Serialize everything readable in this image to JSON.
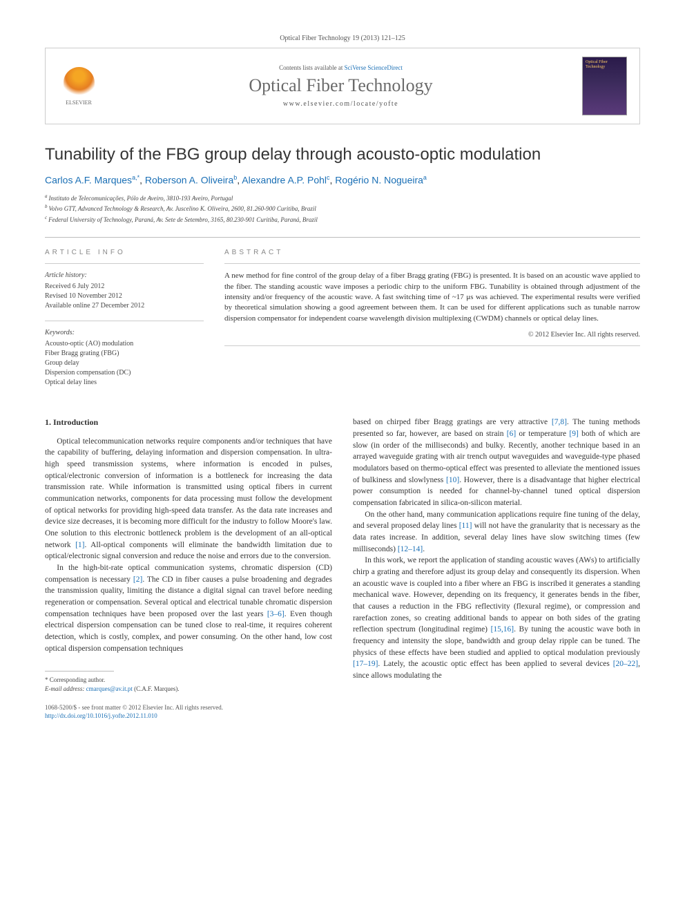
{
  "journal_ref": "Optical Fiber Technology 19 (2013) 121–125",
  "header": {
    "contents_prefix": "Contents lists available at ",
    "contents_link": "SciVerse ScienceDirect",
    "journal_title": "Optical Fiber Technology",
    "journal_url": "www.elsevier.com/locate/yofte",
    "publisher_label": "ELSEVIER",
    "cover_label": "Optical Fiber Technology"
  },
  "title": "Tunability of the FBG group delay through acousto-optic modulation",
  "authors": [
    {
      "name": "Carlos A.F. Marques",
      "marks": "a,*"
    },
    {
      "name": "Roberson A. Oliveira",
      "marks": "b"
    },
    {
      "name": "Alexandre A.P. Pohl",
      "marks": "c"
    },
    {
      "name": "Rogério N. Nogueira",
      "marks": "a"
    }
  ],
  "affiliations": [
    {
      "mark": "a",
      "text": "Instituto de Telecomunicações, Pólo de Aveiro, 3810-193 Aveiro, Portugal"
    },
    {
      "mark": "b",
      "text": "Volvo GTT, Advanced Technology & Research, Av. Juscelino K. Oliveira, 2600, 81.260-900 Curitiba, Brazil"
    },
    {
      "mark": "c",
      "text": "Federal University of Technology, Paraná, Av. Sete de Setembro, 3165, 80.230-901 Curitiba, Paraná, Brazil"
    }
  ],
  "article_info": {
    "label": "ARTICLE INFO",
    "history_label": "Article history:",
    "received": "Received 6 July 2012",
    "revised": "Revised 10 November 2012",
    "online": "Available online 27 December 2012",
    "keywords_label": "Keywords:",
    "keywords": [
      "Acousto-optic (AO) modulation",
      "Fiber Bragg grating (FBG)",
      "Group delay",
      "Dispersion compensation (DC)",
      "Optical delay lines"
    ]
  },
  "abstract": {
    "label": "ABSTRACT",
    "text": "A new method for fine control of the group delay of a fiber Bragg grating (FBG) is presented. It is based on an acoustic wave applied to the fiber. The standing acoustic wave imposes a periodic chirp to the uniform FBG. Tunability is obtained through adjustment of the intensity and/or frequency of the acoustic wave. A fast switching time of ~17 μs was achieved. The experimental results were verified by theoretical simulation showing a good agreement between them. It can be used for different applications such as tunable narrow dispersion compensator for independent coarse wavelength division multiplexing (CWDM) channels or optical delay lines.",
    "copyright": "© 2012 Elsevier Inc. All rights reserved."
  },
  "body": {
    "section_heading": "1. Introduction",
    "p1": "Optical telecommunication networks require components and/or techniques that have the capability of buffering, delaying information and dispersion compensation. In ultra-high speed transmission systems, where information is encoded in pulses, optical/electronic conversion of information is a bottleneck for increasing the data transmission rate. While information is transmitted using optical fibers in current communication networks, components for data processing must follow the development of optical networks for providing high-speed data transfer. As the data rate increases and device size decreases, it is becoming more difficult for the industry to follow Moore's law. One solution to this electronic bottleneck problem is the development of an all-optical network [1]. All-optical components will eliminate the bandwidth limitation due to optical/electronic signal conversion and reduce the noise and errors due to the conversion.",
    "p2": "In the high-bit-rate optical communication systems, chromatic dispersion (CD) compensation is necessary [2]. The CD in fiber causes a pulse broadening and degrades the transmission quality, limiting the distance a digital signal can travel before needing regeneration or compensation. Several optical and electrical tunable chromatic dispersion compensation techniques have been proposed over the last years [3–6]. Even though electrical dispersion compensation can be tuned close to real-time, it requires coherent detection, which is costly, complex, and power consuming. On the other hand, low cost optical dispersion compensation techniques",
    "p3": "based on chirped fiber Bragg gratings are very attractive [7,8]. The tuning methods presented so far, however, are based on strain [6] or temperature [9] both of which are slow (in order of the milliseconds) and bulky. Recently, another technique based in an arrayed waveguide grating with air trench output waveguides and waveguide-type phased modulators based on thermo-optical effect was presented to alleviate the mentioned issues of bulkiness and slowlyness [10]. However, there is a disadvantage that higher electrical power consumption is needed for channel-by-channel tuned optical dispersion compensation fabricated in silica-on-silicon material.",
    "p4": "On the other hand, many communication applications require fine tuning of the delay, and several proposed delay lines [11] will not have the granularity that is necessary as the data rates increase. In addition, several delay lines have slow switching times (few milliseconds) [12–14].",
    "p5": "In this work, we report the application of standing acoustic waves (AWs) to artificially chirp a grating and therefore adjust its group delay and consequently its dispersion. When an acoustic wave is coupled into a fiber where an FBG is inscribed it generates a standing mechanical wave. However, depending on its frequency, it generates bends in the fiber, that causes a reduction in the FBG reflectivity (flexural regime), or compression and rarefaction zones, so creating additional bands to appear on both sides of the grating reflection spectrum (longitudinal regime) [15,16]. By tuning the acoustic wave both in frequency and intensity the slope, bandwidth and group delay ripple can be tuned. The physics of these effects have been studied and applied to optical modulation previously [17–19]. Lately, the acoustic optic effect has been applied to several devices [20–22], since allows modulating the"
  },
  "footnote": {
    "corr_label": "* Corresponding author.",
    "email_label": "E-mail address:",
    "email": "cmarques@av.it.pt",
    "email_name": "(C.A.F. Marques)."
  },
  "bottom": {
    "line1": "1068-5200/$ - see front matter © 2012 Elsevier Inc. All rights reserved.",
    "doi": "http://dx.doi.org/10.1016/j.yofte.2012.11.010"
  }
}
